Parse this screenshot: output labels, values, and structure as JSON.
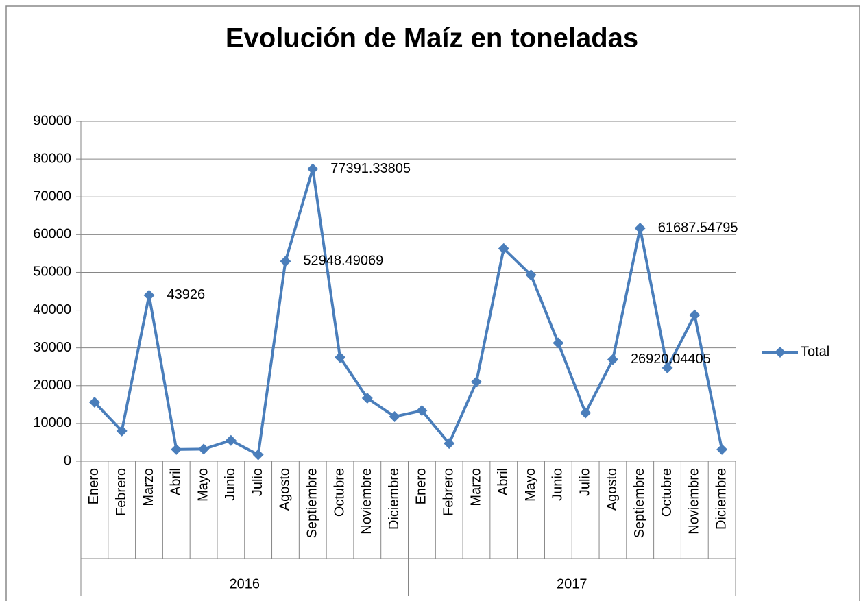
{
  "chart_data": {
    "type": "line",
    "title": "Evolución de Maíz en toneladas",
    "categories": [
      "Enero",
      "Febrero",
      "Marzo",
      "Abril",
      "Mayo",
      "Junio",
      "Julio",
      "Agosto",
      "Septiembre",
      "Octubre",
      "Noviembre",
      "Diciembre",
      "Enero",
      "Febrero",
      "Marzo",
      "Abril",
      "Mayo",
      "Junio",
      "Julio",
      "Agosto",
      "Septiembre",
      "Octubre",
      "Noviembre",
      "Diciembre"
    ],
    "groups": [
      "2016",
      "2017"
    ],
    "series": [
      {
        "name": "Total",
        "color": "#4a7ebb",
        "values": [
          15600,
          8000,
          43926,
          3100,
          3200,
          5500,
          1700,
          52948.49069,
          77391.33805,
          27500,
          16700,
          11800,
          13400,
          4700,
          21000,
          56300,
          49300,
          31300,
          12800,
          26920.04405,
          61687.54795,
          24700,
          38700,
          3100
        ],
        "value_labels": [
          null,
          null,
          "43926",
          null,
          null,
          null,
          null,
          "52948.49069",
          "77391.33805",
          null,
          null,
          null,
          null,
          null,
          null,
          null,
          null,
          null,
          null,
          "26920.04405",
          "61687.54795",
          null,
          null,
          null
        ]
      }
    ],
    "ylim": [
      0,
      90000
    ],
    "yticks": [
      0,
      10000,
      20000,
      30000,
      40000,
      50000,
      60000,
      70000,
      80000,
      90000
    ],
    "grid": true,
    "legend": "right"
  }
}
